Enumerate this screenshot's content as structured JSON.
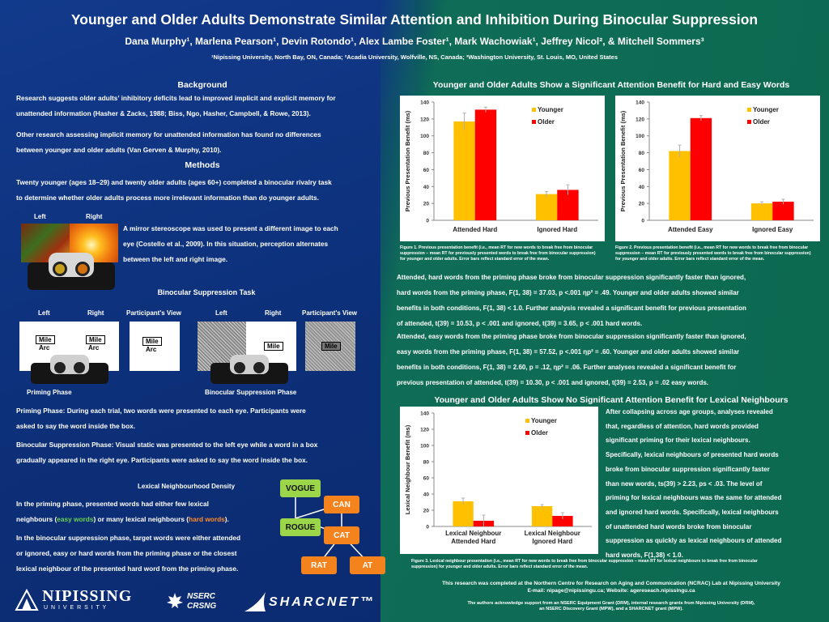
{
  "title": "Younger and Older Adults Demonstrate Similar Attention and Inhibition During Binocular Suppression",
  "authors": "Dana Murphy¹, Marlena Pearson¹, Devin Rotondo¹, Alex Lambe Foster¹, Mark Wachowiak¹, Jeffrey Nicol², & Mitchell Sommers³",
  "affiliations": "¹Nipissing University, North Bay, ON, Canada; ²Acadia University, Wolfville, NS, Canada; ³Washington University, St. Louis, MO, United States",
  "background": {
    "heading": "Background",
    "p1a": "Research suggests older adults’ inhibitory deficits lead to improved implicit and explicit memory for",
    "p1b": "unattended information (Hasher & Zacks, 1988; Biss, Ngo, Hasher, Campbell, & Rowe, 2013).",
    "p2a": "Other research assessing implicit memory for unattended information has found no differences",
    "p2b": "between younger and older adults (Van Gerven & Murphy, 2010)."
  },
  "methods": {
    "heading": "Methods",
    "p1a": "Twenty younger (ages 18–29) and twenty older adults (ages 60+) completed a binocular rivalry task",
    "p1b": "to determine whether older adults process more irrelevant information than do younger adults.",
    "left_label": "Left",
    "right_label": "Right",
    "mirror1": "A mirror stereoscope was used to present a different image to each",
    "mirror2": "eye (Costello et al., 2009).   In this situation, perception alternates",
    "mirror3": "between  the  left  and right image.",
    "task_heading": "Binocular Suppression Task",
    "pv_label": "Participant's View",
    "word_mile": "Mile",
    "word_arc": "Arc",
    "priming_label": "Priming Phase",
    "suppression_label": "Binocular Suppression Phase",
    "priming_a": "Priming Phase: During each trial, two words were presented to each eye.  Participants were",
    "priming_b": "asked to say the word inside the box.",
    "supp_a": "Binocular Suppression Phase: Visual static was presented to the left eye while a word in a box",
    "supp_b": "gradually appeared in the right eye.  Participants were asked to say the word inside the box.",
    "density_heading": "Lexical Neighbourhood Density",
    "dens_a": "In the priming phase, presented words had either few lexical",
    "dens_b_pre": "neighbours (",
    "easy_words": "easy words",
    "dens_b_mid": ") or many lexical neighbours (",
    "hard_words": "hard words",
    "dens_b_post": ").",
    "dens_c": "In the binocular suppression phase, target words were either attended",
    "dens_d": "or ignored, easy or hard words from the priming phase or the closest",
    "dens_e": "lexical neighbour of the presented hard word from the priming phase.",
    "nodes": {
      "vogue": "VOGUE",
      "can": "CAN",
      "rogue": "ROGUE",
      "cat": "CAT",
      "rat": "RAT",
      "at": "AT"
    }
  },
  "results": {
    "heading1": "Younger and Older Adults Show a Significant Attention Benefit for Hard and Easy Words",
    "fig1_caption_a": "Figure 1. Previous presentation benefit (i.e., mean RT for new words to break free from binocular",
    "fig1_caption_b": "suppression – mean RT for previously presented words to break free from binocular suppression)",
    "fig1_caption_c": "for younger and older adults.  Error bars reflect standard error of the mean.",
    "fig2_caption_a": "Figure 2. Previous presentation benefit (i.e., mean RT for new words to break free from binocular",
    "fig2_caption_b": "suppression – mean RT for previously presented words to break free from binocular suppression)",
    "fig2_caption_c": "for younger and older adults.  Error bars reflect standard error of the mean.",
    "r1a": "Attended, hard words from the priming phase broke from binocular suppression significantly faster than ignored,",
    "r1b": "hard words from the priming phase, F(1, 38) = 37.03, p <.001 ηp² = .49.  Younger and older adults showed similar",
    "r1c": "benefits in both conditions, F(1, 38) < 1.0.  Further analysis revealed a significant benefit for previous presentation",
    "r1d": "of attended, t(39) = 10.53, p < .001 and ignored, t(39) = 3.65, p < .001 hard words.",
    "r2a": "Attended, easy words from the priming phase broke from binocular suppression significantly faster than ignored,",
    "r2b": "easy words from the priming phase, F(1, 38) = 57.52, p <.001 ηp² = .60.  Younger and older adults showed similar",
    "r2c": "benefits in both conditions, F(1, 38) = 2.60, p = .12, ηp² = .06.  Further analyses revealed a significant benefit for",
    "r2d": "previous presentation of attended, t(39) = 10.30, p < .001 and ignored, t(39) = 2.53, p = .02 easy words.",
    "heading2": "Younger and Older Adults Show  No Significant Attention Benefit for Lexical Neighbours",
    "n1": "After collapsing across age groups, analyses revealed",
    "n2": "that, regardless of attention, hard words provided",
    "n3": "significant priming for their lexical neighbours.",
    "n4": "Specifically, lexical neighbours of presented hard words",
    "n5": "broke from binocular suppression significantly faster",
    "n6": "than new words, ts(39) > 2.23, ps < .03.  The level of",
    "n7": "priming for lexical neighbours was the same for attended",
    "n8": "and ignored hard words.  Specifically, lexical neighbours",
    "n9": "of unattended hard words broke from binocular",
    "n10": "suppression as quickly as lexical neighbours of attended",
    "n11": "hard words, F(1,38) < 1.0.",
    "fig3_caption_a": "Figure 3. Lexical neighbour presentation (i.e., mean RT for new words to break free from binocular suppression – mean RT for lexical neighbours to break free from binocular",
    "fig3_caption_b": "suppression) for younger and older adults.  Error bars reflect standard error of the mean.",
    "ack1": "This research was completed at the Northern Centre for Research on Aging and Communication (NCRAC) Lab at Nipissing University",
    "ack2": "E-mail:  nipage@nipissingu.ca;  Website: agereseach.nipissingu.ca",
    "ack3": "The authors acknowledge support from an NSERC Equipment Grant (DRM), internal research grants from Nipissing University (DRM),",
    "ack4": "an NSERC Discovery Grant (MPW), and a SHARCNET grant (MPW)."
  },
  "logos": {
    "nipissing": "NIPISSING",
    "university": "U N I V E R S I T Y",
    "nserc": "NSERC",
    "crsng": "CRSNG",
    "sharcnet": "SHARCNET™"
  },
  "colors": {
    "younger": "#ffc000",
    "older": "#ff0000"
  },
  "chart_data": [
    {
      "type": "bar",
      "categories": [
        "Attended Hard",
        "Ignored Hard"
      ],
      "series": [
        {
          "name": "Younger",
          "values": [
            117,
            31
          ],
          "error": [
            10,
            3
          ]
        },
        {
          "name": "Older",
          "values": [
            131,
            36
          ],
          "error": [
            3,
            6
          ]
        }
      ],
      "ylabel": "Previous Presentation Benefit (ms)",
      "ylim": [
        0,
        140
      ],
      "yticks": [
        0,
        20,
        40,
        60,
        80,
        100,
        120,
        140
      ],
      "legend": "top-right"
    },
    {
      "type": "bar",
      "categories": [
        "Attended Easy",
        "Ignored Easy"
      ],
      "series": [
        {
          "name": "Younger",
          "values": [
            82,
            20
          ],
          "error": [
            7,
            2
          ]
        },
        {
          "name": "Older",
          "values": [
            121,
            22
          ],
          "error": [
            3,
            3
          ]
        }
      ],
      "ylabel": "Previous Presentation Benefit (ms)",
      "ylim": [
        0,
        140
      ],
      "yticks": [
        0,
        20,
        40,
        60,
        80,
        100,
        120,
        140
      ],
      "legend": "top-right"
    },
    {
      "type": "bar",
      "categories": [
        "Lexical Neighbour Attended Hard",
        "Lexical Neighbour Ignored Hard"
      ],
      "series": [
        {
          "name": "Younger",
          "values": [
            31,
            25
          ],
          "error": [
            4,
            2
          ]
        },
        {
          "name": "Older",
          "values": [
            7,
            13
          ],
          "error": [
            7,
            4
          ]
        }
      ],
      "ylabel": "Lexical Neighbour Benefit (ms)",
      "ylim": [
        0,
        140
      ],
      "yticks": [
        0,
        20,
        40,
        60,
        80,
        100,
        120,
        140
      ],
      "legend": "top-right"
    }
  ]
}
